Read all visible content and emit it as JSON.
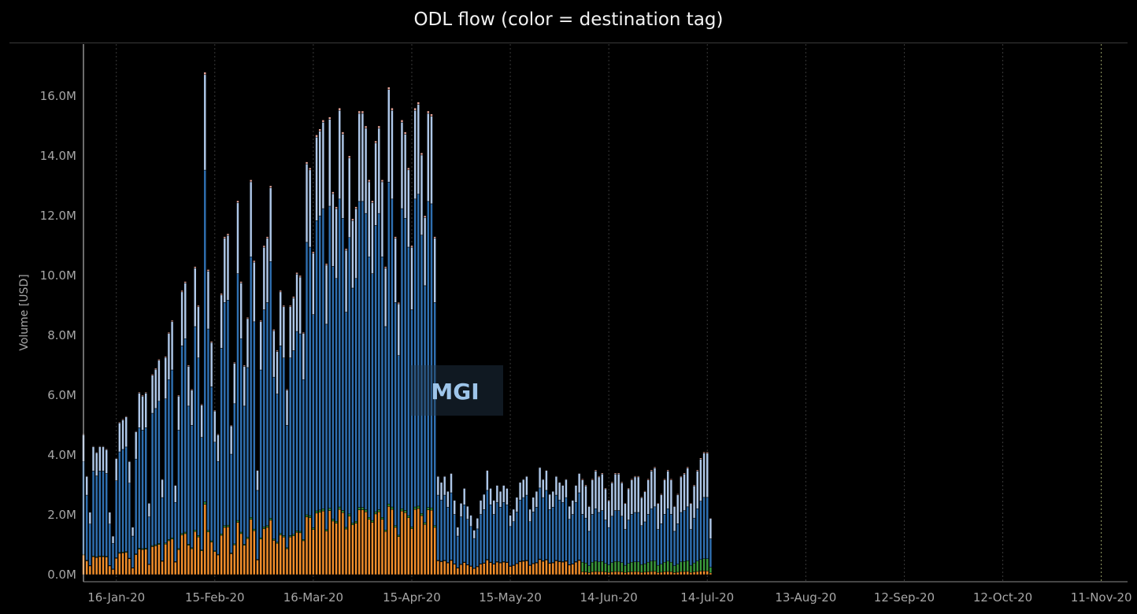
{
  "chart_data": {
    "type": "bar",
    "stacked": true,
    "title": "ODL flow (color = destination tag)",
    "ylabel": "Volume [USD]",
    "xlabel": "",
    "ylim": [
      0,
      17500000
    ],
    "y_ticks": [
      "0.0M",
      "2.0M",
      "4.0M",
      "6.0M",
      "8.0M",
      "10.0M",
      "12.0M",
      "14.0M",
      "16.0M"
    ],
    "x_ticks": [
      "16-Jan-20",
      "15-Feb-20",
      "16-Mar-20",
      "15-Apr-20",
      "15-May-20",
      "14-Jun-20",
      "14-Jul-20",
      "13-Aug-20",
      "12-Sep-20",
      "12-Oct-20",
      "11-Nov-20"
    ],
    "x_range": [
      "06-Jan-20",
      "19-Nov-20"
    ],
    "date_start": "06-Jan-20",
    "watermark": "MGI",
    "grid": "vertical dotted lines at x ticks",
    "series_colors": {
      "orange": "#f28e2b",
      "green": "#3a9a3c",
      "blue": "#2f6fb0",
      "lightblue": "#aec7e8",
      "pink": "#e8a69a"
    },
    "series_stack_order": [
      "orange",
      "green",
      "blue",
      "lightblue",
      "pink"
    ],
    "ranges": [
      {
        "from": "06-Jan-20",
        "to": "05-Jun-20",
        "orange_share": 0.14,
        "green_share": 0.005,
        "blue_share": 0.66,
        "lightblue_share": 0.19,
        "pink_share": 0.005
      },
      {
        "from": "06-Jun-20",
        "to": "10-Nov-20",
        "orange_share": 0.03,
        "green_share": 0.1,
        "blue_share": 0.5,
        "lightblue_share": 0.36,
        "pink_share": 0.01
      }
    ],
    "daily_totals_musd": [
      4.7,
      3.3,
      2.1,
      4.3,
      4.1,
      4.3,
      4.3,
      4.2,
      2.1,
      1.3,
      3.9,
      5.1,
      5.2,
      5.3,
      3.8,
      1.6,
      4.8,
      6.1,
      6.0,
      6.1,
      2.4,
      6.7,
      6.9,
      7.2,
      3.2,
      7.3,
      8.1,
      8.5,
      3.0,
      6.0,
      9.5,
      9.8,
      7.0,
      6.2,
      10.3,
      9.0,
      5.7,
      16.8,
      10.2,
      7.8,
      5.5,
      4.7,
      9.4,
      11.3,
      11.4,
      5.0,
      7.1,
      12.5,
      9.8,
      7.0,
      8.6,
      13.2,
      10.5,
      3.5,
      8.5,
      11.0,
      11.3,
      13.0,
      8.2,
      7.5,
      9.5,
      9.0,
      6.2,
      9.0,
      9.3,
      10.1,
      10.0,
      8.1,
      13.8,
      13.6,
      10.8,
      14.7,
      14.9,
      15.2,
      10.4,
      15.3,
      12.8,
      12.3,
      15.6,
      14.8,
      10.9,
      14.0,
      11.9,
      12.3,
      15.5,
      15.5,
      15.0,
      13.2,
      12.5,
      14.5,
      15.0,
      13.2,
      10.3,
      16.3,
      15.6,
      11.3,
      9.1,
      15.2,
      14.8,
      13.6,
      11.0,
      15.6,
      15.8,
      14.1,
      12.0,
      15.5,
      15.4,
      11.3,
      3.3,
      3.1,
      3.3,
      2.8,
      3.4,
      2.5,
      1.6,
      2.4,
      2.9,
      2.3,
      2.0,
      1.5,
      1.9,
      2.5,
      2.7,
      3.5,
      2.9,
      2.5,
      3.0,
      2.8,
      3.0,
      2.9,
      2.0,
      2.2,
      2.6,
      3.1,
      3.2,
      3.3,
      2.2,
      2.6,
      2.8,
      3.6,
      3.2,
      3.5,
      2.7,
      2.8,
      3.3,
      3.1,
      3.0,
      3.2,
      2.3,
      2.5,
      3.0,
      3.4,
      3.2,
      3.0,
      2.3,
      3.2,
      3.5,
      3.3,
      3.4,
      2.9,
      2.5,
      3.1,
      3.4,
      3.4,
      3.1,
      2.4,
      2.9,
      3.2,
      3.3,
      3.3,
      2.6,
      2.8,
      3.2,
      3.5,
      3.6,
      2.4,
      2.7,
      3.2,
      3.5,
      3.2,
      2.3,
      2.7,
      3.3,
      3.4,
      3.6,
      2.4,
      3.0,
      3.5,
      3.9,
      4.1,
      4.1,
      1.9
    ]
  }
}
